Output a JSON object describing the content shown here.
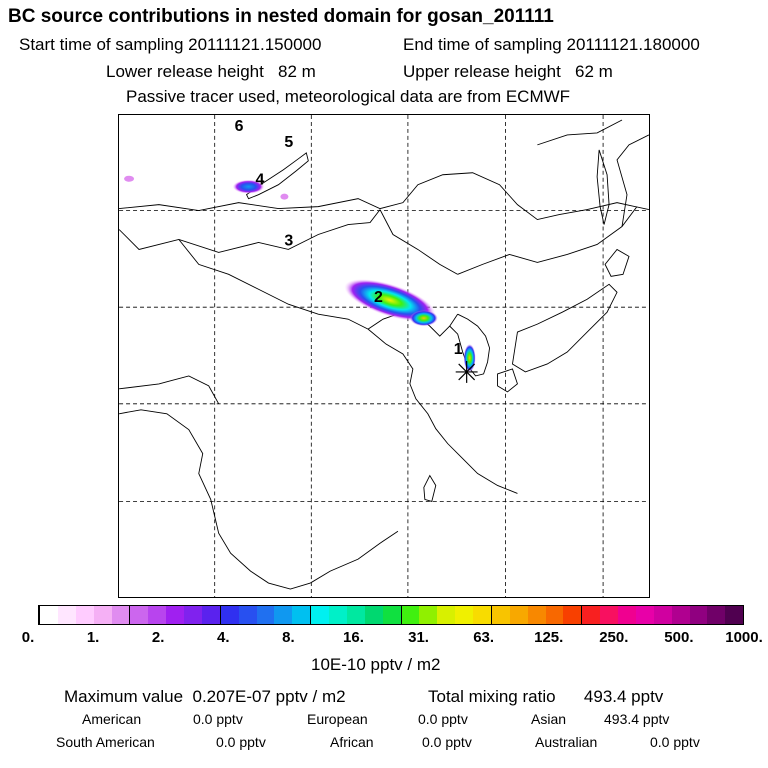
{
  "title": "BC  source contributions in nested domain for gosan_201111",
  "header": {
    "start_label": "Start time of sampling",
    "start_value": "20111121.150000",
    "end_label": "End time of sampling",
    "end_value": "20111121.180000",
    "lower_label": "Lower release height",
    "lower_value": "82 m",
    "upper_label": "Upper release height",
    "upper_value": "62 m",
    "note": "Passive tracer used, meteorological data are from ECMWF"
  },
  "map": {
    "labels": [
      "6",
      "5",
      "4",
      "3",
      "2",
      "1"
    ],
    "receptor": "gosan"
  },
  "legend": {
    "colors": [
      "#ffffff",
      "#ffe6ff",
      "#ffccff",
      "#f5b0f5",
      "#e08cf0",
      "#cc66ee",
      "#b844ee",
      "#a020f0",
      "#8022ee",
      "#5a22ee",
      "#3030f0",
      "#2850f0",
      "#2070f0",
      "#1098f0",
      "#00c0f0",
      "#00f0f0",
      "#00f0c8",
      "#00e8a0",
      "#00d870",
      "#10e040",
      "#40f010",
      "#90f000",
      "#d8f000",
      "#f0f000",
      "#f8dc00",
      "#f8c400",
      "#f8a800",
      "#f88800",
      "#f86800",
      "#f84000",
      "#f82020",
      "#f81060",
      "#f00090",
      "#e800a8",
      "#d000a0",
      "#b00090",
      "#900080",
      "#700068",
      "#500050"
    ],
    "ticks": [
      "0.",
      "1.",
      "2.",
      "4.",
      "8.",
      "16.",
      "31.",
      "63.",
      "125.",
      "250.",
      "500.",
      "1000."
    ],
    "unit": "10E-10 pptv / m2"
  },
  "summary": {
    "max_label": "Maximum value",
    "max_value": "0.207E-07 pptv / m2",
    "total_label": "Total mixing ratio",
    "total_value": "493.4 pptv",
    "regions": [
      {
        "name": "American",
        "value": "0.0 pptv"
      },
      {
        "name": "European",
        "value": "0.0 pptv"
      },
      {
        "name": "Asian",
        "value": "493.4 pptv"
      },
      {
        "name": "South American",
        "value": "0.0 pptv"
      },
      {
        "name": "African",
        "value": "0.0 pptv"
      },
      {
        "name": "Australian",
        "value": "0.0 pptv"
      }
    ]
  }
}
